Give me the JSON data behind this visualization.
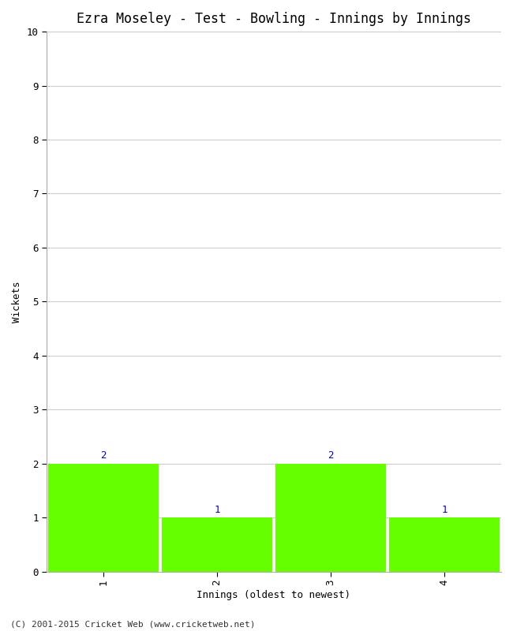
{
  "title": "Ezra Moseley - Test - Bowling - Innings by Innings",
  "xlabel": "Innings (oldest to newest)",
  "ylabel": "Wickets",
  "categories": [
    1,
    2,
    3,
    4
  ],
  "values": [
    2,
    1,
    2,
    1
  ],
  "bar_color": "#66ff00",
  "bar_edge_color": "#66ff00",
  "ylim": [
    0,
    10
  ],
  "yticks": [
    0,
    1,
    2,
    3,
    4,
    5,
    6,
    7,
    8,
    9,
    10
  ],
  "xticks": [
    1,
    2,
    3,
    4
  ],
  "label_color": "#0000cc",
  "label_fontsize": 9,
  "title_fontsize": 12,
  "axis_label_fontsize": 9,
  "tick_fontsize": 9,
  "background_color": "#ffffff",
  "grid_color": "#cccccc",
  "footer": "(C) 2001-2015 Cricket Web (www.cricketweb.net)",
  "footer_fontsize": 8
}
